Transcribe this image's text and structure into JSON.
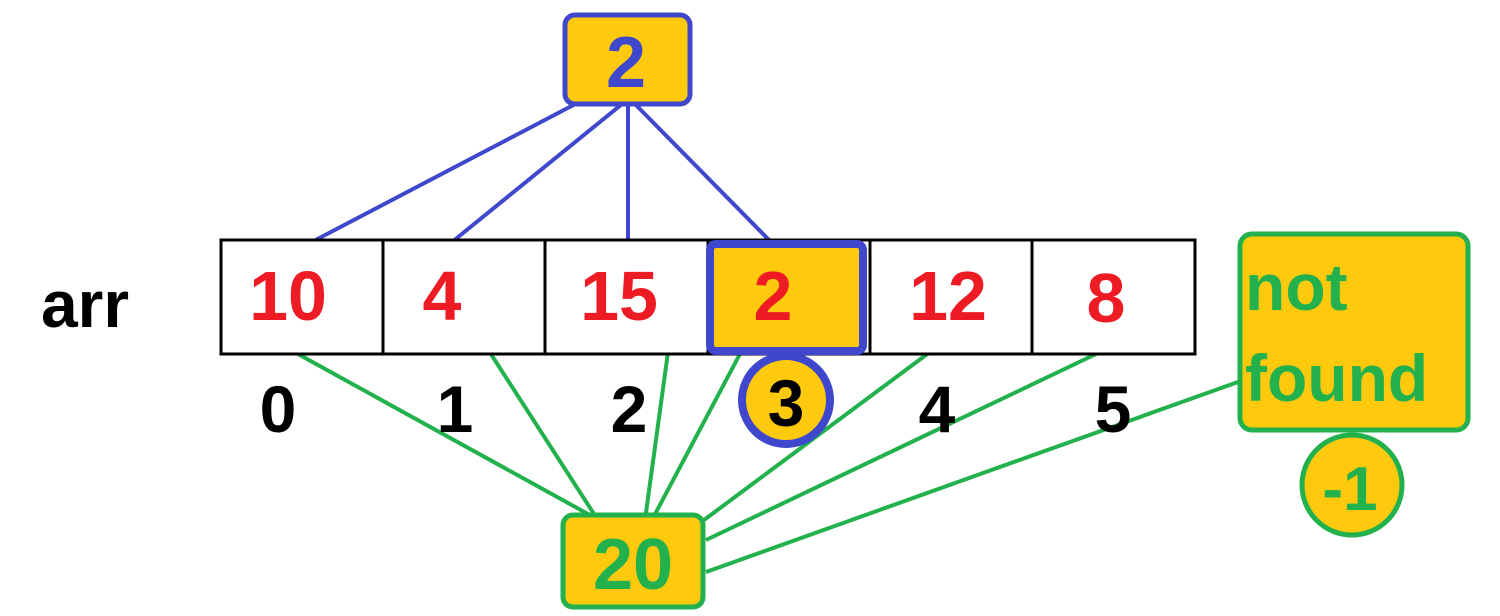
{
  "array_label": "arr",
  "array": {
    "values": [
      "10",
      "4",
      "15",
      "2",
      "12",
      "8"
    ],
    "indices": [
      "0",
      "1",
      "2",
      "3",
      "4",
      "5"
    ]
  },
  "search_found": {
    "key": "2",
    "found_index": "3"
  },
  "search_not_found": {
    "key": "20",
    "result_label_line1": "not",
    "result_label_line2": "found",
    "result_value": "-1"
  },
  "colors": {
    "highlight": "#ffc90e",
    "blue": "#3f48cc",
    "green": "#22b14c",
    "red": "#ed1c24",
    "black": "#000000"
  }
}
